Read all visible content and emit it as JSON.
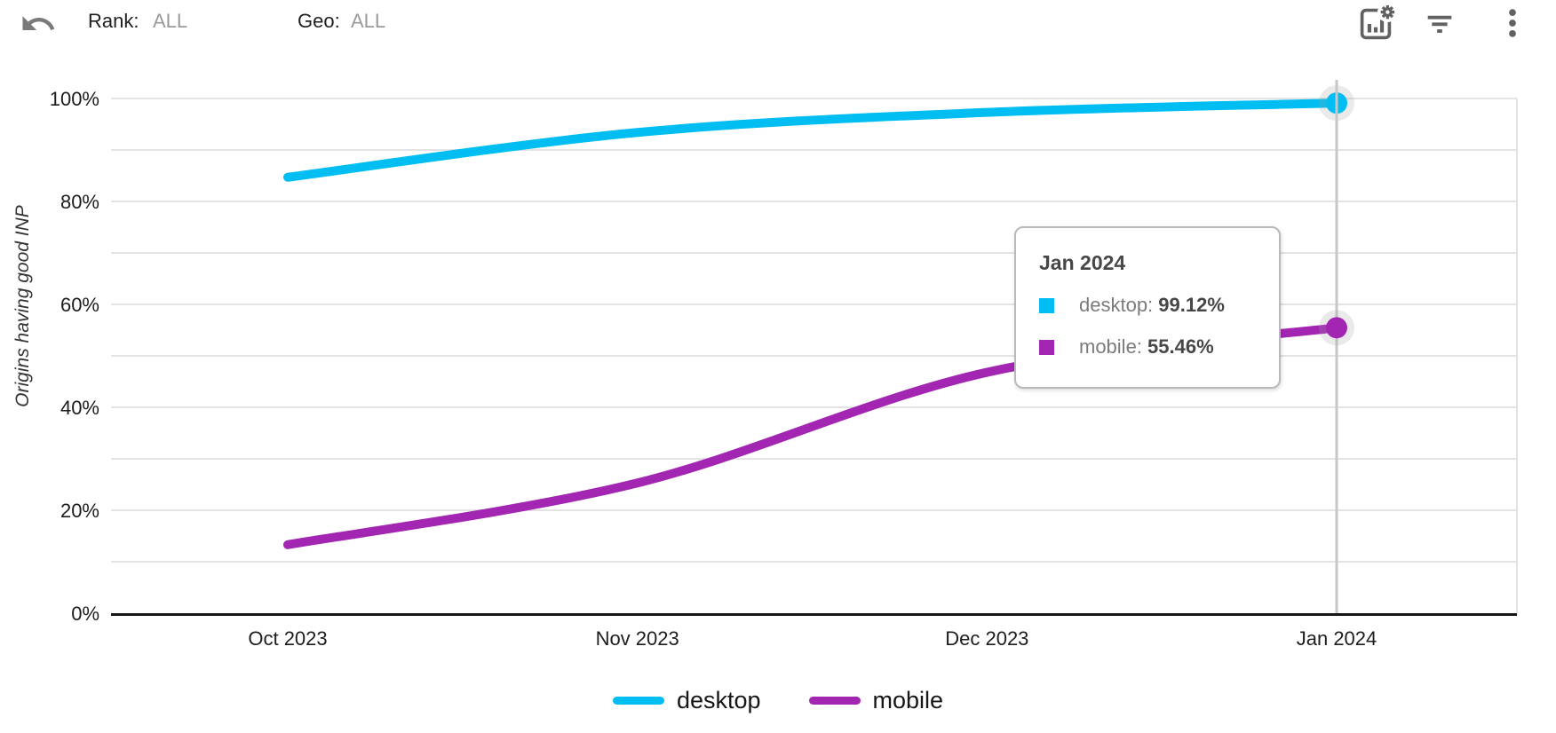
{
  "header": {
    "filters": [
      {
        "label": "Rank:",
        "value": "ALL"
      },
      {
        "label": "Geo:",
        "value": "ALL"
      }
    ],
    "actions": [
      "chart-settings",
      "filter",
      "more-options"
    ]
  },
  "chart_data": {
    "type": "line",
    "title": "",
    "xlabel": "",
    "ylabel": "Origins having good INP",
    "categories": [
      "Oct 2023",
      "Nov 2023",
      "Dec 2023",
      "Jan 2024"
    ],
    "series": [
      {
        "name": "desktop",
        "color": "#00bdf2",
        "values": [
          84.7,
          93.4,
          97.3,
          99.12
        ]
      },
      {
        "name": "mobile",
        "color": "#a226b2",
        "values": [
          13.3,
          25.3,
          46.8,
          55.46
        ]
      }
    ],
    "ylim": [
      0,
      100
    ],
    "ytick_step": 10,
    "ylabel_every": 20,
    "grid": true,
    "legend_position": "bottom",
    "hover": {
      "category": "Jan 2024",
      "index": 3
    }
  },
  "tooltip": {
    "title": "Jan 2024",
    "rows": [
      {
        "label": "desktop",
        "value": "99.12%",
        "color": "#00bdf2"
      },
      {
        "label": "mobile",
        "value": "55.46%",
        "color": "#a226b2"
      }
    ]
  }
}
